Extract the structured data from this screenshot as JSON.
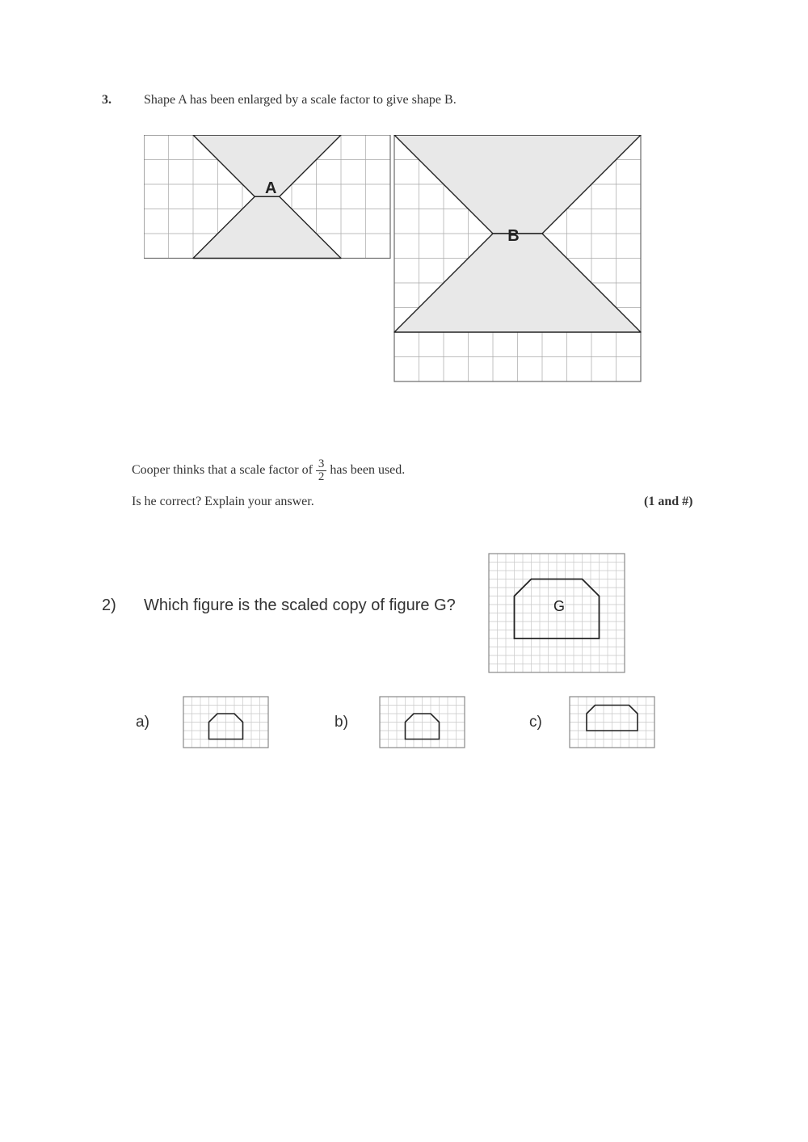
{
  "page": {
    "background": "#ffffff",
    "text_color": "#333333"
  },
  "q3": {
    "number": "3.",
    "prompt": "Shape A has been enlarged by a scale factor to give shape B.",
    "cooper_line_pre": "Cooper thinks that a scale factor of ",
    "fraction_num": "3",
    "fraction_den": "2",
    "cooper_line_post": " has been used.",
    "followup": "Is he correct? Explain your answer.",
    "marks": "(1 and #)",
    "figure": {
      "grid_cell": 33,
      "grid_cols_A": 10,
      "grid_rows_A": 5,
      "grid_cols_B": 10,
      "grid_rows_B": 10,
      "grid_line_color": "#a8a8a8",
      "grid_border_color": "#6b6b6b",
      "shape_fill": "#e8e8e8",
      "shape_stroke": "#222222",
      "label_A": "A",
      "label_B": "B",
      "label_font": "Comic Sans MS, Arial, sans-serif",
      "label_fontsize": 20,
      "shapeA_points": [
        [
          2,
          0
        ],
        [
          8,
          0
        ],
        [
          5,
          3
        ],
        [
          8,
          5
        ],
        [
          2,
          5
        ],
        [
          5,
          3
        ]
      ],
      "shapeB_points_top": [
        [
          0,
          0
        ],
        [
          10,
          0
        ],
        [
          6,
          4
        ],
        [
          4,
          4
        ]
      ],
      "shapeB_points_bot": [
        [
          4,
          4
        ],
        [
          6,
          4
        ],
        [
          10,
          8
        ],
        [
          0,
          8
        ]
      ]
    }
  },
  "q2": {
    "number": "2)",
    "prompt": "Which figure is the scaled copy of figure G?",
    "label_G": "G",
    "option_a": "a)",
    "option_b": "b)",
    "option_c": "c)",
    "figure_G": {
      "grid_cols": 16,
      "grid_rows": 14,
      "cell": 10.5,
      "grid_color": "#c9c9c9",
      "border_color": "#888888",
      "shape_stroke": "#222222",
      "shape_points": [
        [
          3,
          10
        ],
        [
          3,
          5
        ],
        [
          5,
          3
        ],
        [
          11,
          3
        ],
        [
          13,
          5
        ],
        [
          13,
          10
        ]
      ]
    },
    "options": {
      "grid_cols": 10,
      "grid_rows": 6,
      "cell": 10.5,
      "grid_color": "#c9c9c9",
      "border_color": "#888888",
      "shape_stroke": "#222222",
      "a_points": [
        [
          3,
          5
        ],
        [
          3,
          3
        ],
        [
          4,
          2
        ],
        [
          6,
          2
        ],
        [
          7,
          3
        ],
        [
          7,
          5
        ]
      ],
      "b_points": [
        [
          3,
          5
        ],
        [
          3,
          3
        ],
        [
          4,
          2
        ],
        [
          6,
          2
        ],
        [
          7,
          3
        ],
        [
          7,
          5
        ]
      ],
      "c_points": [
        [
          2,
          4
        ],
        [
          2,
          2
        ],
        [
          3,
          1
        ],
        [
          7,
          1
        ],
        [
          8,
          2
        ],
        [
          8,
          4
        ]
      ]
    }
  }
}
